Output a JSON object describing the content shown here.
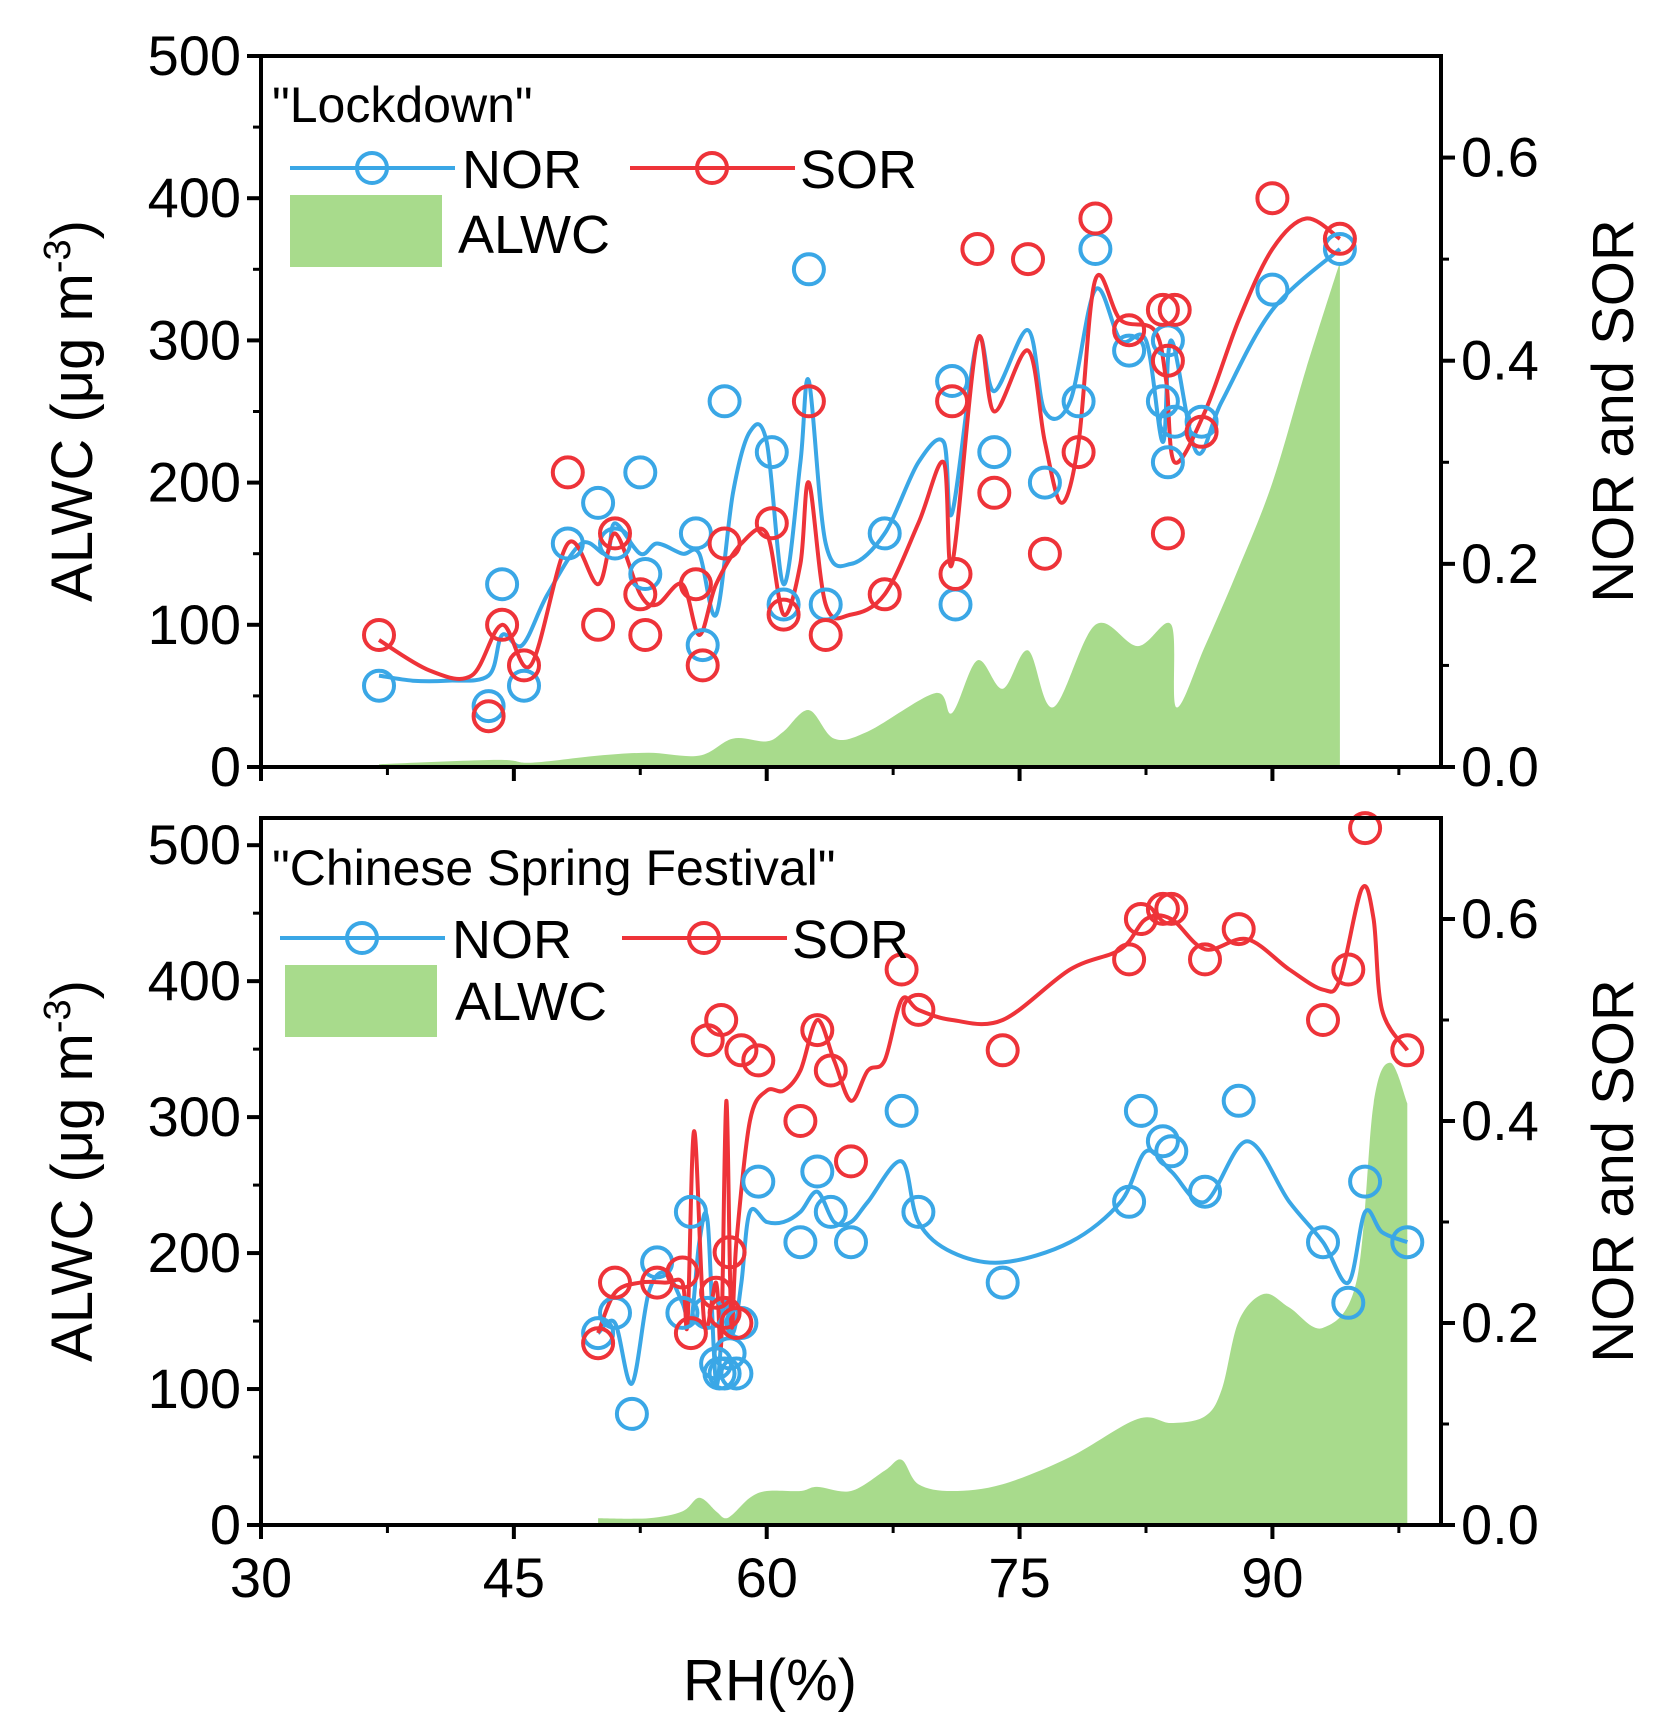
{
  "chart_data": [
    {
      "type": "line",
      "title": "\"Lockdown\"",
      "xlabel": "RH(%)",
      "ylabel": "ALWC (μg m-3)",
      "ylabel_parts": {
        "main": "ALWC (μg m",
        "sup": "-3",
        "close": ")"
      },
      "y2label": "NOR and SOR",
      "xlim": [
        30,
        100
      ],
      "ylim": [
        0,
        500
      ],
      "y2lim": [
        0,
        0.7
      ],
      "x_ticks": [
        30,
        45,
        60,
        75,
        90
      ],
      "x_tick_labels": [
        "30",
        "45",
        "60",
        "75",
        "90"
      ],
      "y_ticks": [
        0,
        100,
        200,
        300,
        400,
        500
      ],
      "y_tick_labels": [
        "0",
        "100",
        "200",
        "300",
        "400",
        "500"
      ],
      "y2_ticks": [
        0,
        0.2,
        0.4,
        0.6
      ],
      "y2_tick_labels": [
        "0.0",
        "0.2",
        "0.4",
        "0.6"
      ],
      "legend": {
        "labels": [
          "NOR",
          "SOR",
          "ALWC"
        ],
        "placement": "top-left"
      },
      "colors": {
        "NOR": "#3aa7e6",
        "SOR": "#ee3339",
        "ALWC": "#a8db8c"
      },
      "series": [
        {
          "name": "ALWC",
          "axis": "left",
          "kind": "area",
          "x": [
            37,
            44,
            46,
            50,
            53,
            56,
            58,
            60,
            61,
            62.5,
            64,
            66,
            70,
            71,
            72.5,
            74,
            75.5,
            77,
            79.5,
            82,
            84,
            84.3,
            86,
            88,
            90,
            92,
            94
          ],
          "y": [
            2,
            5,
            3,
            8,
            10,
            8,
            20,
            18,
            25,
            40,
            20,
            25,
            52,
            38,
            75,
            55,
            82,
            42,
            100,
            85,
            100,
            42,
            85,
            140,
            200,
            280,
            355
          ]
        },
        {
          "name": "NOR",
          "axis": "right",
          "kind": "line-points",
          "curve_x": [
            37,
            39,
            41,
            43.5,
            44.3,
            45.5,
            47,
            49,
            50.5,
            51,
            52.5,
            53.5,
            55,
            56,
            57,
            58,
            59,
            60,
            61,
            62,
            62.5,
            63.5,
            65,
            67,
            69,
            70.5,
            71,
            72.5,
            73.5,
            75.5,
            76.5,
            78,
            79.5,
            81,
            82.5,
            83.5,
            84,
            85.5,
            87,
            90,
            94
          ],
          "curve_y": [
            0.09,
            0.085,
            0.085,
            0.09,
            0.13,
            0.12,
            0.17,
            0.22,
            0.21,
            0.24,
            0.21,
            0.22,
            0.21,
            0.21,
            0.15,
            0.27,
            0.33,
            0.32,
            0.18,
            0.3,
            0.38,
            0.22,
            0.2,
            0.23,
            0.3,
            0.32,
            0.25,
            0.42,
            0.37,
            0.43,
            0.35,
            0.36,
            0.47,
            0.42,
            0.42,
            0.32,
            0.42,
            0.31,
            0.36,
            0.45,
            0.51
          ],
          "points_x": [
            37,
            43.5,
            44.3,
            45.6,
            48.2,
            50,
            51,
            52.5,
            52.8,
            55.8,
            56.2,
            57.5,
            60.3,
            61,
            62.5,
            63.5,
            67,
            71,
            71.2,
            73.5,
            76.5,
            78.5,
            79.5,
            81.5,
            83.5,
            83.8,
            83.8,
            84.2,
            85.8,
            90,
            94
          ],
          "points_y": [
            0.08,
            0.06,
            0.18,
            0.08,
            0.22,
            0.26,
            0.22,
            0.29,
            0.19,
            0.23,
            0.12,
            0.36,
            0.31,
            0.16,
            0.49,
            0.16,
            0.23,
            0.38,
            0.16,
            0.31,
            0.28,
            0.36,
            0.51,
            0.41,
            0.36,
            0.3,
            0.42,
            0.34,
            0.34,
            0.47,
            0.51
          ]
        },
        {
          "name": "SOR",
          "axis": "right",
          "kind": "line-points",
          "curve_x": [
            37,
            40,
            42.5,
            44.3,
            46,
            48.2,
            50,
            51,
            52.5,
            53.5,
            55,
            56,
            57,
            58.5,
            60,
            61,
            62,
            62.5,
            63.5,
            65,
            67,
            69,
            70.5,
            71,
            72.5,
            73.5,
            75.5,
            76.5,
            77.5,
            78.5,
            79.5,
            81,
            83,
            83.7,
            84.2,
            86,
            88,
            90,
            92,
            94
          ],
          "curve_y": [
            0.125,
            0.095,
            0.09,
            0.14,
            0.1,
            0.22,
            0.18,
            0.23,
            0.17,
            0.16,
            0.18,
            0.13,
            0.18,
            0.22,
            0.23,
            0.15,
            0.2,
            0.28,
            0.16,
            0.15,
            0.17,
            0.24,
            0.3,
            0.2,
            0.42,
            0.35,
            0.41,
            0.32,
            0.26,
            0.32,
            0.48,
            0.44,
            0.43,
            0.38,
            0.3,
            0.35,
            0.44,
            0.51,
            0.54,
            0.52
          ],
          "points_x": [
            37,
            43.5,
            44.3,
            45.6,
            48.2,
            50,
            51,
            52.5,
            52.8,
            55.8,
            56.2,
            57.5,
            60.3,
            61,
            62.5,
            63.5,
            67,
            71,
            71.2,
            72.5,
            73.5,
            75.5,
            76.5,
            78.5,
            79.5,
            81.5,
            83.5,
            83.8,
            83.8,
            84.2,
            85.8,
            90,
            94
          ],
          "points_y": [
            0.13,
            0.05,
            0.14,
            0.1,
            0.29,
            0.14,
            0.23,
            0.17,
            0.13,
            0.18,
            0.1,
            0.22,
            0.24,
            0.15,
            0.36,
            0.13,
            0.17,
            0.36,
            0.19,
            0.51,
            0.27,
            0.5,
            0.21,
            0.31,
            0.54,
            0.43,
            0.45,
            0.4,
            0.23,
            0.45,
            0.33,
            0.56,
            0.52
          ]
        }
      ]
    },
    {
      "type": "line",
      "title": "\"Chinese Spring Festival\"",
      "xlabel": "RH(%)",
      "ylabel": "ALWC (μg m-3)",
      "ylabel_parts": {
        "main": "ALWC (μg m",
        "sup": "-3",
        "close": ")"
      },
      "y2label": "NOR and SOR",
      "xlim": [
        30,
        100
      ],
      "ylim": [
        0,
        520
      ],
      "y2lim": [
        0,
        0.7
      ],
      "x_ticks": [
        30,
        45,
        60,
        75,
        90
      ],
      "x_tick_labels": [
        "30",
        "45",
        "60",
        "75",
        "90"
      ],
      "y_ticks": [
        0,
        100,
        200,
        300,
        400,
        500
      ],
      "y_tick_labels": [
        "0",
        "100",
        "200",
        "300",
        "400",
        "500"
      ],
      "y2_ticks": [
        0,
        0.2,
        0.4,
        0.6
      ],
      "y2_tick_labels": [
        "0.0",
        "0.2",
        "0.4",
        "0.6"
      ],
      "legend": {
        "labels": [
          "NOR",
          "SOR",
          "ALWC"
        ],
        "placement": "top-left"
      },
      "colors": {
        "NOR": "#3aa7e6",
        "SOR": "#ee3339",
        "ALWC": "#a8db8c"
      },
      "series": [
        {
          "name": "ALWC",
          "axis": "left",
          "kind": "area",
          "x": [
            50,
            53,
            55,
            56,
            57,
            57.5,
            58,
            59,
            60,
            62,
            63,
            65,
            67,
            68,
            69,
            71,
            74,
            78,
            82,
            84,
            86,
            87,
            88,
            89.5,
            91,
            93,
            95,
            96,
            97,
            98
          ],
          "y": [
            5,
            5,
            10,
            20,
            10,
            5,
            8,
            20,
            25,
            25,
            28,
            25,
            40,
            48,
            30,
            25,
            30,
            50,
            78,
            75,
            80,
            100,
            150,
            170,
            160,
            145,
            180,
            310,
            340,
            310
          ]
        },
        {
          "name": "NOR",
          "axis": "right",
          "kind": "line-points",
          "curve_x": [
            50,
            51,
            52,
            53,
            54,
            55,
            55.5,
            56,
            56.5,
            57,
            57.5,
            58,
            58.5,
            59,
            60,
            61,
            62,
            63,
            64,
            65,
            66,
            68,
            69,
            71,
            74,
            78,
            81,
            82.5,
            84,
            86,
            88.5,
            91,
            93,
            94.5,
            95.5,
            96.5,
            98
          ],
          "curve_y": [
            0.19,
            0.2,
            0.14,
            0.23,
            0.25,
            0.22,
            0.2,
            0.28,
            0.3,
            0.14,
            0.22,
            0.19,
            0.24,
            0.31,
            0.3,
            0.3,
            0.31,
            0.33,
            0.3,
            0.3,
            0.32,
            0.36,
            0.3,
            0.27,
            0.26,
            0.28,
            0.32,
            0.37,
            0.35,
            0.32,
            0.38,
            0.32,
            0.28,
            0.24,
            0.31,
            0.29,
            0.28
          ],
          "points_x": [
            50,
            51,
            52,
            53.5,
            55,
            55.5,
            56.5,
            57,
            57.2,
            57.5,
            57.8,
            58.2,
            58.5,
            59.5,
            62,
            63,
            63.8,
            65,
            68,
            69,
            74,
            81.5,
            82.2,
            83.5,
            84,
            86,
            88,
            93,
            94.5,
            95.5,
            98
          ],
          "points_y": [
            0.19,
            0.21,
            0.11,
            0.26,
            0.21,
            0.31,
            0.21,
            0.16,
            0.15,
            0.15,
            0.17,
            0.15,
            0.2,
            0.34,
            0.28,
            0.35,
            0.31,
            0.28,
            0.41,
            0.31,
            0.24,
            0.32,
            0.41,
            0.38,
            0.37,
            0.33,
            0.42,
            0.28,
            0.22,
            0.34,
            0.28
          ]
        },
        {
          "name": "SOR",
          "axis": "right",
          "kind": "line-points",
          "curve_x": [
            50,
            51,
            52.5,
            54,
            55,
            55.3,
            55.7,
            56.3,
            57,
            57.3,
            57.6,
            57.9,
            58.2,
            59,
            60,
            61,
            62,
            63,
            64,
            65,
            66,
            67,
            68,
            69,
            71,
            74,
            78,
            81,
            82.5,
            84,
            86,
            88.5,
            91,
            93,
            94,
            95.3,
            96,
            96.5,
            98
          ],
          "curve_y": [
            0.19,
            0.23,
            0.24,
            0.24,
            0.24,
            0.2,
            0.39,
            0.2,
            0.24,
            0.18,
            0.42,
            0.2,
            0.28,
            0.4,
            0.43,
            0.43,
            0.45,
            0.5,
            0.46,
            0.42,
            0.45,
            0.46,
            0.52,
            0.51,
            0.5,
            0.5,
            0.55,
            0.57,
            0.6,
            0.6,
            0.57,
            0.58,
            0.55,
            0.53,
            0.54,
            0.63,
            0.6,
            0.51,
            0.47
          ],
          "points_x": [
            50,
            51,
            53.5,
            55,
            55.5,
            56.5,
            57,
            57.3,
            57.5,
            57.8,
            58.2,
            58.5,
            59.5,
            62,
            63,
            63.8,
            65,
            68,
            69,
            74,
            81.5,
            82.2,
            83.5,
            84,
            86,
            88,
            93,
            94.5,
            95.5,
            98
          ],
          "points_y": [
            0.18,
            0.24,
            0.24,
            0.25,
            0.19,
            0.48,
            0.23,
            0.5,
            0.21,
            0.27,
            0.2,
            0.47,
            0.46,
            0.4,
            0.49,
            0.45,
            0.36,
            0.55,
            0.51,
            0.47,
            0.56,
            0.6,
            0.61,
            0.61,
            0.56,
            0.59,
            0.5,
            0.55,
            0.69,
            0.47
          ]
        }
      ]
    }
  ]
}
